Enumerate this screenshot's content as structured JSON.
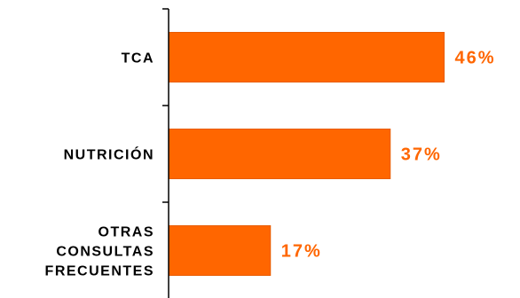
{
  "chart_data": {
    "type": "bar",
    "orientation": "horizontal",
    "title": "",
    "xlabel": "",
    "ylabel": "",
    "categories": [
      [
        "TCA"
      ],
      [
        "NUTRICIÓN"
      ],
      [
        "OTRAS",
        "CONSULTAS",
        "FRECUENTES"
      ]
    ],
    "values": [
      46,
      37,
      17
    ],
    "data_labels": [
      "46%",
      "37%",
      "17%"
    ],
    "xlim": [
      0,
      100
    ],
    "grid": false,
    "legend": "none",
    "colors": {
      "bar": "#FF6600",
      "bar_edge": "#E85C00",
      "value_label": "#FF6600",
      "axis": "#000000",
      "category_label": "#000000"
    }
  }
}
